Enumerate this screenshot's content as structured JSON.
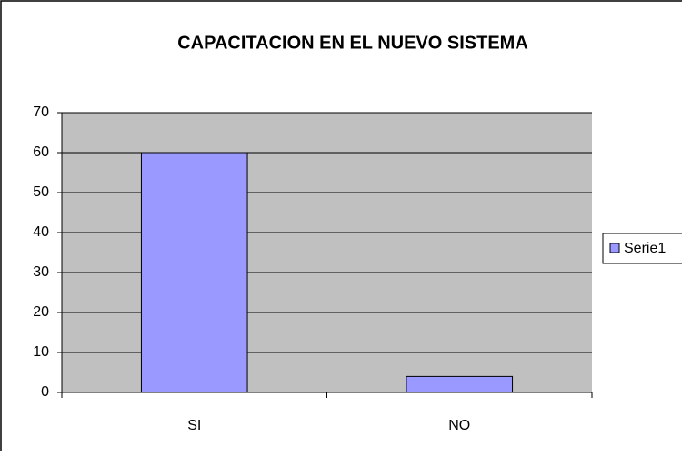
{
  "chart_data": {
    "type": "bar",
    "title": "CAPACITACION EN EL NUEVO SISTEMA",
    "categories": [
      "SI",
      "NO"
    ],
    "series": [
      {
        "name": "Serie1",
        "color": "#9999ff",
        "values": [
          60,
          4
        ]
      }
    ],
    "ylim": [
      0,
      70
    ],
    "yticks": [
      0,
      10,
      20,
      30,
      40,
      50,
      60,
      70
    ],
    "grid": true,
    "legend": "right"
  }
}
